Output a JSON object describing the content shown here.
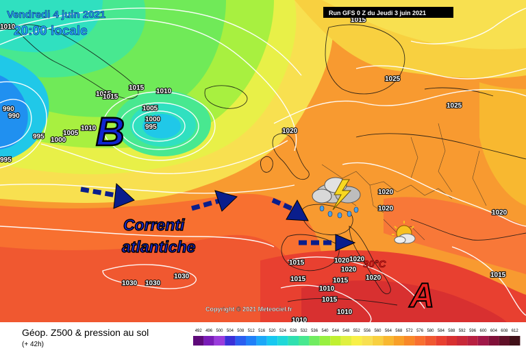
{
  "header": {
    "date": "Vendredi 4 juin 2021",
    "time": "20:00 locale",
    "run": "Run GFS 0 Z du Jeudi 3 juin 2021"
  },
  "footer": {
    "title": "Géop. Z500 & pression au sol",
    "lead": "(+ 42h)",
    "copyright": "© 2021 Meteociel.fr",
    "copyright_label": "Copyright"
  },
  "scale": {
    "values": [
      "492",
      "496",
      "500",
      "504",
      "508",
      "512",
      "516",
      "520",
      "524",
      "528",
      "532",
      "536",
      "540",
      "544",
      "548",
      "552",
      "556",
      "560",
      "564",
      "568",
      "572",
      "576",
      "580",
      "584",
      "588",
      "592",
      "596",
      "600",
      "604",
      "608",
      "612"
    ],
    "colors": [
      "#5e0a7a",
      "#7a1cb8",
      "#9a3cdc",
      "#3a30d8",
      "#2a5ef0",
      "#2080f8",
      "#1ca8f8",
      "#18c8f0",
      "#20d8d8",
      "#30e0b0",
      "#48e890",
      "#70ec60",
      "#98f040",
      "#c0f030",
      "#e0f040",
      "#f8f048",
      "#f8e050",
      "#f8d040",
      "#f8b830",
      "#f8a028",
      "#f88828",
      "#f87030",
      "#f05830",
      "#e84030",
      "#d83030",
      "#c82838",
      "#b82040",
      "#a01848",
      "#801038",
      "#601028",
      "#401018"
    ]
  },
  "annotations": {
    "low_letter": "B",
    "high_letter": "A",
    "currents_line1": "Correnti",
    "currents_line2": "atlantiche",
    "temperature": "30°C"
  },
  "icons": [
    "thunderstorm-icon",
    "partly-cloudy-icon",
    "dashed-arrow-icon"
  ],
  "isobars": [
    {
      "id": "p01",
      "text": "1015"
    },
    {
      "id": "p02",
      "text": "1015"
    },
    {
      "id": "p03",
      "text": "1010"
    },
    {
      "id": "p04",
      "text": "1010"
    },
    {
      "id": "p05",
      "text": "1015"
    },
    {
      "id": "p06",
      "text": "1005"
    },
    {
      "id": "p07",
      "text": "1000"
    },
    {
      "id": "p08",
      "text": "995"
    },
    {
      "id": "p09",
      "text": "990"
    },
    {
      "id": "p10",
      "text": "990"
    },
    {
      "id": "p11",
      "text": "995"
    },
    {
      "id": "p12",
      "text": "1000"
    },
    {
      "id": "p13",
      "text": "1005"
    },
    {
      "id": "p14",
      "text": "1010"
    },
    {
      "id": "p15",
      "text": "995"
    },
    {
      "id": "p16",
      "text": "1020"
    },
    {
      "id": "p17",
      "text": "1025"
    },
    {
      "id": "p18",
      "text": "1025"
    },
    {
      "id": "p19",
      "text": "1020"
    },
    {
      "id": "p20",
      "text": "1020"
    },
    {
      "id": "p21",
      "text": "1020"
    },
    {
      "id": "p22",
      "text": "1015"
    },
    {
      "id": "p23",
      "text": "1015"
    },
    {
      "id": "p24",
      "text": "1020"
    },
    {
      "id": "p25",
      "text": "1020"
    },
    {
      "id": "p26",
      "text": "1020"
    },
    {
      "id": "p27",
      "text": "1020"
    },
    {
      "id": "p28",
      "text": "1015"
    },
    {
      "id": "p29",
      "text": "1010"
    },
    {
      "id": "p30",
      "text": "1010"
    },
    {
      "id": "p31",
      "text": "1030"
    },
    {
      "id": "p32",
      "text": "1030"
    },
    {
      "id": "p33",
      "text": "1030"
    },
    {
      "id": "p34",
      "text": "1015"
    },
    {
      "id": "p35",
      "text": "1015"
    },
    {
      "id": "p36",
      "text": "1015"
    },
    {
      "id": "p37",
      "text": "1010"
    }
  ]
}
